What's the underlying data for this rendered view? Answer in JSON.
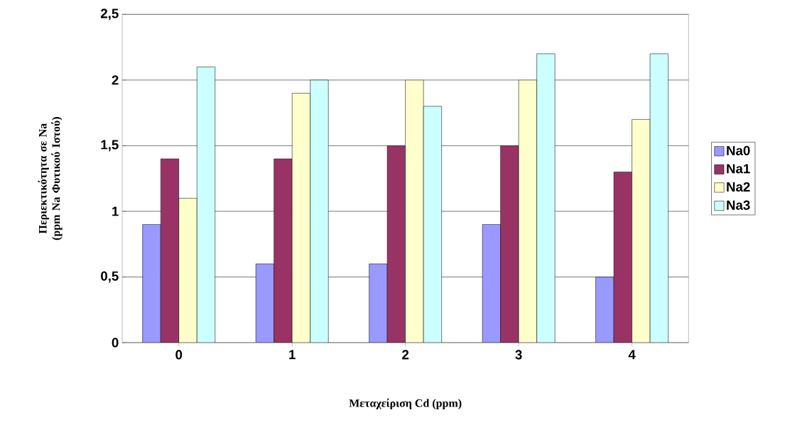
{
  "chart_data": {
    "type": "bar",
    "xlabel": "Μεταχείριση Cd (ppm)",
    "ylabel": "Περιεκτικότητα  σε Na (ppm Na Φυτικού Ιστού)",
    "categories": [
      "0",
      "1",
      "2",
      "3",
      "4"
    ],
    "series": [
      {
        "name": "Na0",
        "color": "#9999ff",
        "values": [
          0.9,
          0.6,
          0.6,
          0.9,
          0.5
        ]
      },
      {
        "name": "Na1",
        "color": "#993366",
        "values": [
          1.4,
          1.4,
          1.5,
          1.5,
          1.3
        ]
      },
      {
        "name": "Na2",
        "color": "#ffffcc",
        "values": [
          1.1,
          1.9,
          2.0,
          2.0,
          1.7
        ]
      },
      {
        "name": "Na3",
        "color": "#ccffff",
        "values": [
          2.1,
          2.0,
          1.8,
          2.2,
          2.2
        ]
      }
    ],
    "ylim": [
      0,
      2.5
    ],
    "yticks": [
      0,
      {
        "value": 0.5,
        "label": "0,5"
      },
      1,
      {
        "value": 1.5,
        "label": "1,5"
      },
      2,
      {
        "value": 2.5,
        "label": "2,5"
      }
    ],
    "grid": "y",
    "legend": "right"
  }
}
